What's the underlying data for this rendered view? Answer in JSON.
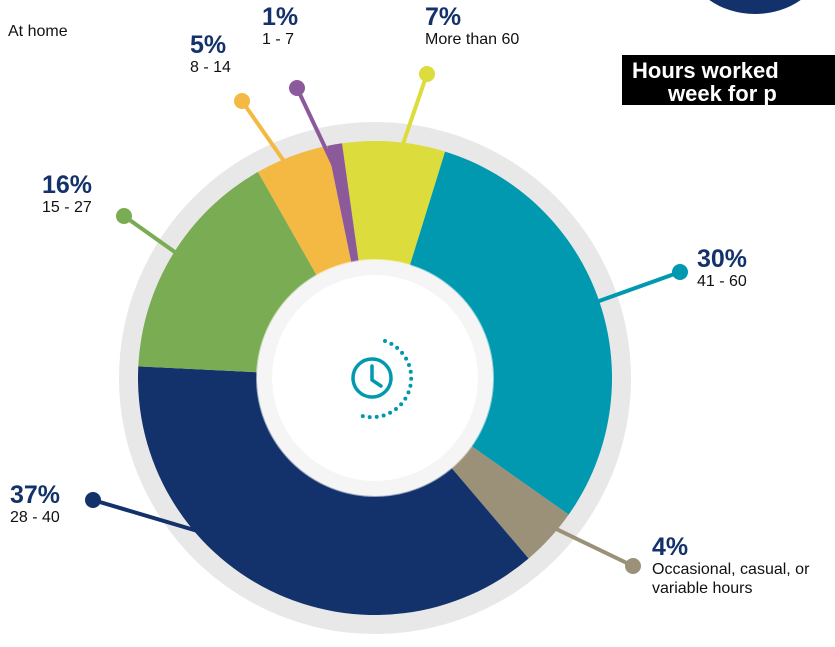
{
  "chart_data": {
    "type": "donut",
    "title": "Hours worked",
    "subtitle": "week for p",
    "annotation": "At home",
    "categories": [
      "More than 60",
      "41 - 60",
      "Occasional, casual, or variable hours",
      "28 - 40",
      "15 - 27",
      "8 - 14",
      "1 - 7"
    ],
    "values": [
      7,
      30,
      4,
      37,
      16,
      5,
      1
    ],
    "value_labels": [
      "7%",
      "30%",
      "4%",
      "37%",
      "16%",
      "5%",
      "1%"
    ],
    "colors": [
      "#dcdc3c",
      "#0099b0",
      "#9a9178",
      "#13326b",
      "#7aac54",
      "#f4b942",
      "#8c5a9a"
    ]
  }
}
